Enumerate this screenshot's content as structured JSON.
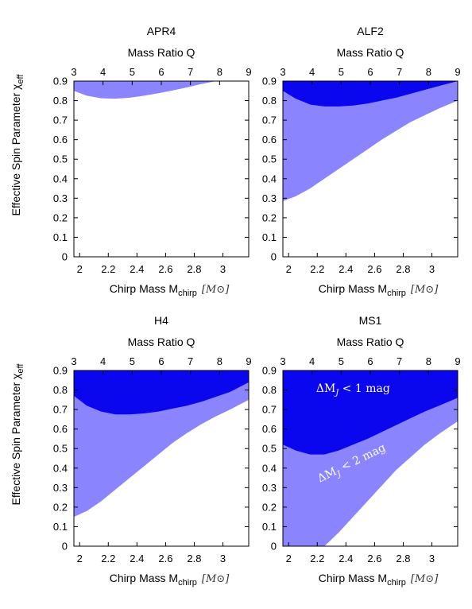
{
  "colors": {
    "light_band": "#8a84ff",
    "dark_band": "#0a06ee",
    "frame": "#000000",
    "background": "#ffffff"
  },
  "ylabel": "Effective Spin Parameter χ",
  "ylabel_sub": "eff",
  "chart_data": [
    {
      "type": "area",
      "title": "APR4",
      "xlabel": "Chirp Mass M",
      "xlabel_sub": "chirp",
      "xlabel_unit": "[M⊙]",
      "top_xlabel": "Mass Ratio Q",
      "top_ticks": [
        "3",
        "4",
        "5",
        "6",
        "7",
        "8",
        "9"
      ],
      "top_range": [
        3,
        9
      ],
      "xlim": [
        1.96,
        3.18
      ],
      "ylim": [
        0,
        0.9
      ],
      "xticks": [
        "2",
        "2.2",
        "2.4",
        "2.6",
        "2.8",
        "3"
      ],
      "yticks": [
        "0",
        "0.1",
        "0.2",
        "0.3",
        "0.4",
        "0.5",
        "0.6",
        "0.7",
        "0.8",
        "0.9"
      ],
      "x": [
        1.96,
        2.05,
        2.15,
        2.25,
        2.35,
        2.45,
        2.55,
        2.65,
        2.75,
        2.85,
        2.95,
        3.05,
        3.18
      ],
      "series": [
        {
          "role": "light_lower",
          "values": [
            0.85,
            0.825,
            0.812,
            0.81,
            0.815,
            0.825,
            0.838,
            0.852,
            0.868,
            0.885,
            0.9,
            0.9,
            0.9
          ]
        },
        {
          "role": "dark_lower",
          "values": [
            0.9,
            0.9,
            0.9,
            0.9,
            0.9,
            0.9,
            0.9,
            0.9,
            0.9,
            0.9,
            0.9,
            0.9,
            0.9
          ]
        }
      ],
      "annotations": []
    },
    {
      "type": "area",
      "title": "ALF2",
      "xlabel": "Chirp Mass M",
      "xlabel_sub": "chirp",
      "xlabel_unit": "[M⊙]",
      "top_xlabel": "Mass Ratio Q",
      "top_ticks": [
        "3",
        "4",
        "5",
        "6",
        "7",
        "8",
        "9"
      ],
      "top_range": [
        3,
        9
      ],
      "xlim": [
        1.96,
        3.18
      ],
      "ylim": [
        0,
        0.9
      ],
      "xticks": [
        "2",
        "2.2",
        "2.4",
        "2.6",
        "2.8",
        "3"
      ],
      "yticks": [
        "0",
        "0.1",
        "0.2",
        "0.3",
        "0.4",
        "0.5",
        "0.6",
        "0.7",
        "0.8",
        "0.9"
      ],
      "x": [
        1.96,
        2.05,
        2.15,
        2.25,
        2.35,
        2.45,
        2.55,
        2.65,
        2.75,
        2.85,
        2.95,
        3.05,
        3.18
      ],
      "series": [
        {
          "role": "light_lower",
          "values": [
            0.285,
            0.31,
            0.35,
            0.4,
            0.45,
            0.5,
            0.55,
            0.6,
            0.645,
            0.69,
            0.725,
            0.76,
            0.8
          ]
        },
        {
          "role": "dark_lower",
          "values": [
            0.85,
            0.81,
            0.78,
            0.77,
            0.77,
            0.775,
            0.785,
            0.8,
            0.815,
            0.835,
            0.855,
            0.875,
            0.9
          ]
        }
      ],
      "annotations": []
    },
    {
      "type": "area",
      "title": "H4",
      "xlabel": "Chirp Mass M",
      "xlabel_sub": "chirp",
      "xlabel_unit": "[M⊙]",
      "top_xlabel": "Mass Ratio Q",
      "top_ticks": [
        "3",
        "4",
        "5",
        "6",
        "7",
        "8",
        "9"
      ],
      "top_range": [
        3,
        9
      ],
      "xlim": [
        1.96,
        3.18
      ],
      "ylim": [
        0,
        0.9
      ],
      "xticks": [
        "2",
        "2.2",
        "2.4",
        "2.6",
        "2.8",
        "3"
      ],
      "yticks": [
        "0",
        "0.1",
        "0.2",
        "0.3",
        "0.4",
        "0.5",
        "0.6",
        "0.7",
        "0.8",
        "0.9"
      ],
      "x": [
        1.96,
        2.05,
        2.15,
        2.25,
        2.35,
        2.45,
        2.55,
        2.65,
        2.75,
        2.85,
        2.95,
        3.05,
        3.18
      ],
      "series": [
        {
          "role": "light_lower",
          "values": [
            0.15,
            0.18,
            0.23,
            0.29,
            0.35,
            0.41,
            0.47,
            0.53,
            0.58,
            0.625,
            0.665,
            0.7,
            0.75
          ]
        },
        {
          "role": "dark_lower",
          "values": [
            0.77,
            0.72,
            0.69,
            0.675,
            0.675,
            0.68,
            0.69,
            0.705,
            0.72,
            0.74,
            0.765,
            0.79,
            0.84
          ]
        }
      ],
      "annotations": []
    },
    {
      "type": "area",
      "title": "MS1",
      "xlabel": "Chirp Mass M",
      "xlabel_sub": "chirp",
      "xlabel_unit": "[M⊙]",
      "top_xlabel": "Mass Ratio Q",
      "top_ticks": [
        "3",
        "4",
        "5",
        "6",
        "7",
        "8",
        "9"
      ],
      "top_range": [
        3,
        9
      ],
      "xlim": [
        1.96,
        3.18
      ],
      "ylim": [
        0,
        0.9
      ],
      "xticks": [
        "2",
        "2.2",
        "2.4",
        "2.6",
        "2.8",
        "3"
      ],
      "yticks": [
        "0",
        "0.1",
        "0.2",
        "0.3",
        "0.4",
        "0.5",
        "0.6",
        "0.7",
        "0.8",
        "0.9"
      ],
      "x": [
        1.96,
        2.05,
        2.15,
        2.25,
        2.35,
        2.45,
        2.55,
        2.65,
        2.75,
        2.85,
        2.95,
        3.05,
        3.18
      ],
      "series": [
        {
          "role": "light_lower",
          "values": [
            0,
            0,
            0,
            0,
            0.07,
            0.15,
            0.23,
            0.31,
            0.39,
            0.455,
            0.52,
            0.575,
            0.64
          ]
        },
        {
          "role": "dark_lower",
          "values": [
            0.52,
            0.49,
            0.47,
            0.47,
            0.49,
            0.52,
            0.55,
            0.585,
            0.62,
            0.655,
            0.69,
            0.72,
            0.76
          ]
        }
      ],
      "annotations": [
        {
          "text": "ΔM_J < 1 mag",
          "x": 2.45,
          "y": 0.79,
          "angle": 0
        },
        {
          "text": "ΔM_J < 2 mag",
          "x": 2.45,
          "y": 0.41,
          "angle": -26
        }
      ]
    }
  ]
}
